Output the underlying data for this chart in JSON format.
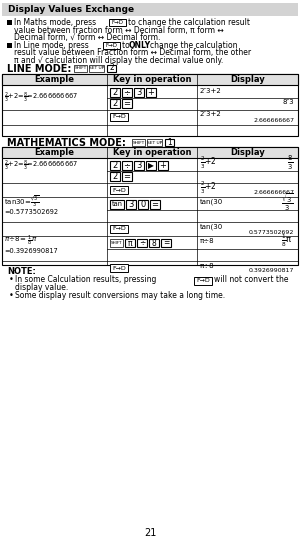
{
  "title_box": "Display Values Exchange",
  "title_box_bg": "#d3d3d3",
  "page_bg": "#ffffff",
  "page_num": "21",
  "header_bg": "#e0e0e0",
  "line_mode_label": "LINE MODE:",
  "math_mode_label": "MATHEMATICS MODE:"
}
